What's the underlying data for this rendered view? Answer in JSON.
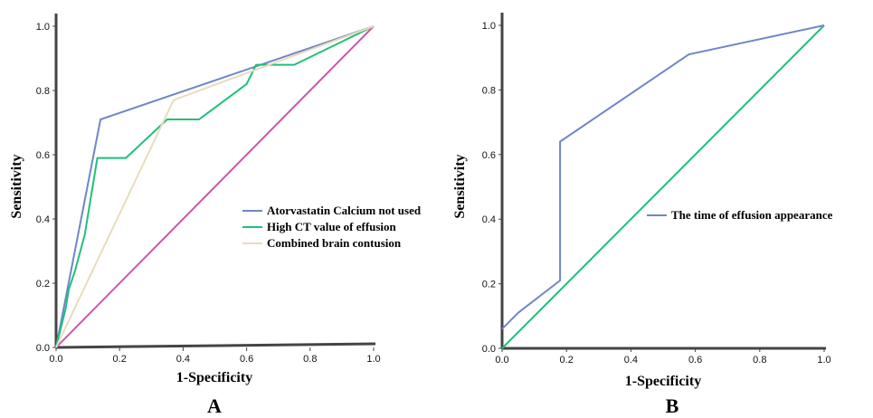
{
  "chart_data": [
    {
      "type": "line",
      "panel_label": "A",
      "xlabel": "1-Specificity",
      "ylabel": "Sensitivity",
      "xlim": [
        0,
        1
      ],
      "ylim": [
        0,
        1
      ],
      "xticks": [
        "0.0",
        "0.2",
        "0.4",
        "0.6",
        "0.8",
        "1.0"
      ],
      "yticks": [
        "0.0",
        "0.2",
        "0.4",
        "0.6",
        "0.8",
        "1.0"
      ],
      "legend_position": "center-right",
      "series": [
        {
          "name": "Atorvastatin Calcium not used",
          "color": "#6f86c9",
          "x": [
            0.0,
            0.14,
            1.0
          ],
          "y": [
            0.0,
            0.71,
            1.0
          ]
        },
        {
          "name": "High CT value of effusion",
          "color": "#1fc07a",
          "x": [
            0.0,
            0.03,
            0.04,
            0.06,
            0.09,
            0.11,
            0.12,
            0.13,
            0.22,
            0.35,
            0.45,
            0.6,
            0.63,
            0.75,
            1.0
          ],
          "y": [
            0.0,
            0.12,
            0.18,
            0.24,
            0.35,
            0.47,
            0.53,
            0.59,
            0.59,
            0.71,
            0.71,
            0.82,
            0.88,
            0.88,
            1.0
          ]
        },
        {
          "name": "Combined brain contusion",
          "color": "#e8dcbc",
          "x": [
            0.0,
            0.37,
            1.0
          ],
          "y": [
            0.0,
            0.77,
            1.0
          ]
        },
        {
          "name": "",
          "color": "#c958a8",
          "x": [
            0.0,
            1.0
          ],
          "y": [
            0.0,
            1.0
          ]
        }
      ]
    },
    {
      "type": "line",
      "panel_label": "B",
      "xlabel": "1-Specificity",
      "ylabel": "Sensitivity",
      "xlim": [
        0,
        1
      ],
      "ylim": [
        0,
        1
      ],
      "xticks": [
        "0.0",
        "0.2",
        "0.4",
        "0.6",
        "0.8",
        "1.0"
      ],
      "yticks": [
        "0.0",
        "0.2",
        "0.4",
        "0.6",
        "0.8",
        "1.0"
      ],
      "legend_position": "center-right",
      "series": [
        {
          "name": "The time of effusion appearance",
          "color": "#6f86c9",
          "x": [
            0.0,
            0.05,
            0.18,
            0.18,
            0.58,
            1.0
          ],
          "y": [
            0.06,
            0.11,
            0.21,
            0.64,
            0.91,
            1.0
          ]
        },
        {
          "name": "",
          "color": "#1fc07a",
          "x": [
            0.0,
            1.0
          ],
          "y": [
            0.0,
            1.0
          ]
        }
      ]
    }
  ]
}
